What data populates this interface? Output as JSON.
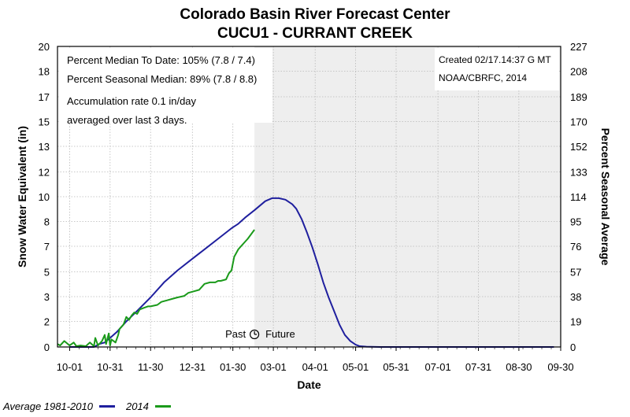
{
  "header": {
    "title": "Colorado Basin River Forecast Center",
    "subtitle": "CUCU1 - CURRANT CREEK"
  },
  "colors": {
    "average": "#1f1f9e",
    "current": "#1a9a1a",
    "future_shade": "#eeeeee",
    "grid": "#b8b8b8"
  },
  "chart_data": {
    "type": "line",
    "title": "Colorado Basin River Forecast Center",
    "subtitle": "CUCU1 - CURRANT CREEK",
    "xlabel": "Date",
    "ylabel": "Snow Water Equivalent (in)",
    "y2label": "Percent Seasonal Average",
    "x_unit": "days since 10-01",
    "xlim": [
      -9,
      364
    ],
    "ylim": [
      0,
      20
    ],
    "x_ticks": [
      {
        "label": "10-01",
        "day": 0
      },
      {
        "label": "10-31",
        "day": 30
      },
      {
        "label": "11-30",
        "day": 60
      },
      {
        "label": "12-31",
        "day": 91
      },
      {
        "label": "01-30",
        "day": 121
      },
      {
        "label": "03-01",
        "day": 151
      },
      {
        "label": "04-01",
        "day": 182
      },
      {
        "label": "05-01",
        "day": 212
      },
      {
        "label": "05-31",
        "day": 242
      },
      {
        "label": "07-01",
        "day": 273
      },
      {
        "label": "07-31",
        "day": 303
      },
      {
        "label": "08-30",
        "day": 333
      },
      {
        "label": "09-30",
        "day": 364
      }
    ],
    "y_ticks": [
      {
        "label": "0",
        "value": 0
      },
      {
        "label": "2",
        "value": 1.7
      },
      {
        "label": "3",
        "value": 3.35
      },
      {
        "label": "5",
        "value": 5.0
      },
      {
        "label": "7",
        "value": 6.7
      },
      {
        "label": "8",
        "value": 8.35
      },
      {
        "label": "10",
        "value": 10.0
      },
      {
        "label": "12",
        "value": 11.65
      },
      {
        "label": "13",
        "value": 13.35
      },
      {
        "label": "15",
        "value": 15.0
      },
      {
        "label": "17",
        "value": 16.65
      },
      {
        "label": "18",
        "value": 18.35
      },
      {
        "label": "20",
        "value": 20.0
      }
    ],
    "y2_ticks": [
      "0",
      "19",
      "38",
      "57",
      "76",
      "95",
      "114",
      "133",
      "152",
      "170",
      "189",
      "208",
      "227"
    ],
    "future_start_day": 137,
    "past_label": "Past",
    "future_label": "Future",
    "info_left": [
      "Percent Median To Date: 105% (7.8 / 7.4)",
      "Percent Seasonal Median: 89% (7.8 / 8.8)",
      "Accumulation rate 0.1 in/day",
      "averaged over last 3 days."
    ],
    "info_right": [
      "Created 02/17.14:37 G MT",
      "NOAA/CBRFC, 2014"
    ],
    "series": [
      {
        "name": "Average 1981-2010",
        "x": [
          0,
          18,
          22,
          26,
          30,
          35,
          42,
          50,
          60,
          70,
          80,
          90,
          100,
          110,
          120,
          125,
          130,
          137,
          145,
          150,
          155,
          160,
          165,
          168,
          172,
          176,
          180,
          184,
          188,
          192,
          196,
          200,
          204,
          208,
          212,
          215,
          220,
          230,
          260,
          300,
          345,
          359
        ],
        "y": [
          0,
          0,
          0.2,
          0.3,
          0.6,
          1.0,
          1.7,
          2.4,
          3.3,
          4.3,
          5.1,
          5.8,
          6.5,
          7.2,
          7.9,
          8.2,
          8.6,
          9.1,
          9.7,
          9.9,
          9.9,
          9.8,
          9.5,
          9.2,
          8.5,
          7.6,
          6.6,
          5.5,
          4.3,
          3.3,
          2.4,
          1.5,
          0.8,
          0.4,
          0.15,
          0.05,
          0.02,
          0,
          0,
          0,
          0,
          0
        ]
      },
      {
        "name": "2014",
        "x": [
          -9,
          -7,
          -4,
          0,
          3,
          5,
          8,
          12,
          15,
          18,
          19,
          21,
          24,
          26,
          27,
          29,
          30,
          31,
          34,
          36,
          37,
          40,
          42,
          44,
          46,
          48,
          50,
          52,
          55,
          58,
          60,
          65,
          68,
          72,
          76,
          80,
          85,
          88,
          92,
          96,
          100,
          104,
          108,
          110,
          112,
          116,
          118,
          120,
          122,
          125,
          128,
          132,
          137
        ],
        "y": [
          0.2,
          0.1,
          0.4,
          0.1,
          0.3,
          0.05,
          0.1,
          0.05,
          0.3,
          0.05,
          0.6,
          0.1,
          0.4,
          0.8,
          0.2,
          0.9,
          0.1,
          0.5,
          0.3,
          0.8,
          1.2,
          1.5,
          2.0,
          1.8,
          2.1,
          2.3,
          2.2,
          2.5,
          2.6,
          2.7,
          2.7,
          2.8,
          3.0,
          3.1,
          3.2,
          3.3,
          3.4,
          3.6,
          3.7,
          3.8,
          4.2,
          4.3,
          4.3,
          4.4,
          4.4,
          4.5,
          4.9,
          5.1,
          6.0,
          6.5,
          6.8,
          7.2,
          7.8
        ]
      }
    ],
    "legend": {
      "position": "bottom-left",
      "entries": [
        {
          "label": "Average 1981-2010",
          "color": "#1f1f9e"
        },
        {
          "label": "2014",
          "color": "#1a9a1a"
        }
      ]
    }
  }
}
